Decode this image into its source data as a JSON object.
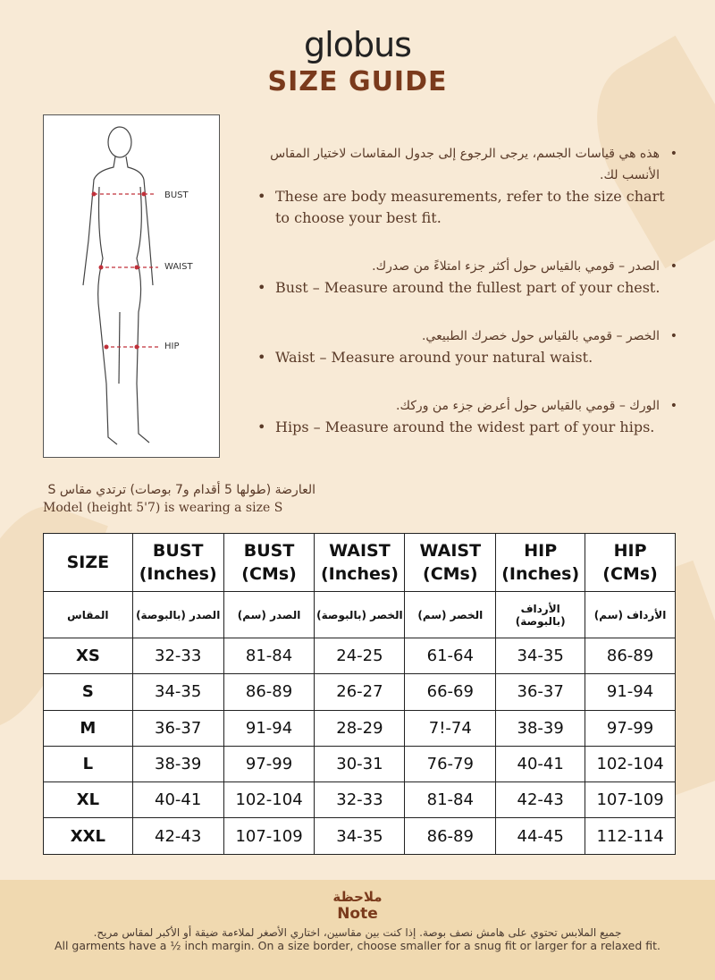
{
  "brand": "globus",
  "title": "SIZE GUIDE",
  "figure": {
    "labels": [
      "BUST",
      "WAIST",
      "HIP"
    ]
  },
  "bullets": [
    {
      "ar": "هذه هي قياسات الجسم، يرجى الرجوع إلى جدول المقاسات لاختيار المقاس الأنسب لك.",
      "en": "These are body measurements, refer to the size chart to choose your best fit."
    },
    {
      "ar": "الصدر – قومي بالقياس حول أكثر جزء امتلاءً من صدرك.",
      "en": "Bust – Measure around the fullest part of your chest."
    },
    {
      "ar": "الخصر – قومي بالقياس حول خصرك الطبيعي.",
      "en": "Waist – Measure around your natural waist."
    },
    {
      "ar": "الورك – قومي بالقياس حول أعرض جزء من وركك.",
      "en": "Hips – Measure around the widest part of your hips."
    }
  ],
  "model": {
    "ar": "العارضة (طولها 5 أقدام و7 بوصات) ترتدي مقاس S",
    "en": "Model (height 5'7) is wearing a size S"
  },
  "table": {
    "headers": [
      [
        "SIZE",
        ""
      ],
      [
        "BUST",
        "(Inches)"
      ],
      [
        "BUST",
        "(CMs)"
      ],
      [
        "WAIST",
        "(Inches)"
      ],
      [
        "WAIST",
        "(CMs)"
      ],
      [
        "HIP",
        "(Inches)"
      ],
      [
        "HIP",
        "(CMs)"
      ]
    ],
    "headers_ar": [
      "المقاس",
      "الصدر (بالبوصة)",
      "الصدر (سم)",
      "الخصر (بالبوصة)",
      "الخصر (سم)",
      "الأرداف (بالبوصة)",
      "الأرداف (سم)"
    ],
    "rows": [
      [
        "XS",
        "32-33",
        "81-84",
        "24-25",
        "61-64",
        "34-35",
        "86-89"
      ],
      [
        "S",
        "34-35",
        "86-89",
        "26-27",
        "66-69",
        "36-37",
        "91-94"
      ],
      [
        "M",
        "36-37",
        "91-94",
        "28-29",
        "7!-74",
        "38-39",
        "97-99"
      ],
      [
        "L",
        "38-39",
        "97-99",
        "30-31",
        "76-79",
        "40-41",
        "102-104"
      ],
      [
        "XL",
        "40-41",
        "102-104",
        "32-33",
        "81-84",
        "42-43",
        "107-109"
      ],
      [
        "XXL",
        "42-43",
        "107-109",
        "34-35",
        "86-89",
        "44-45",
        "112-114"
      ]
    ]
  },
  "note": {
    "title_ar": "ملاحظة",
    "title_en": "Note",
    "text_ar": "جميع الملابس تحتوي على هامش نصف بوصة. إذا كنت بين مقاسين، اختاري الأصغر لملاءمة ضيقة أو الأكبر لمقاس مريح.",
    "text_en": "All garments have a ½ inch margin. On a size border, choose smaller for a snug fit or larger for a relaxed fit."
  }
}
